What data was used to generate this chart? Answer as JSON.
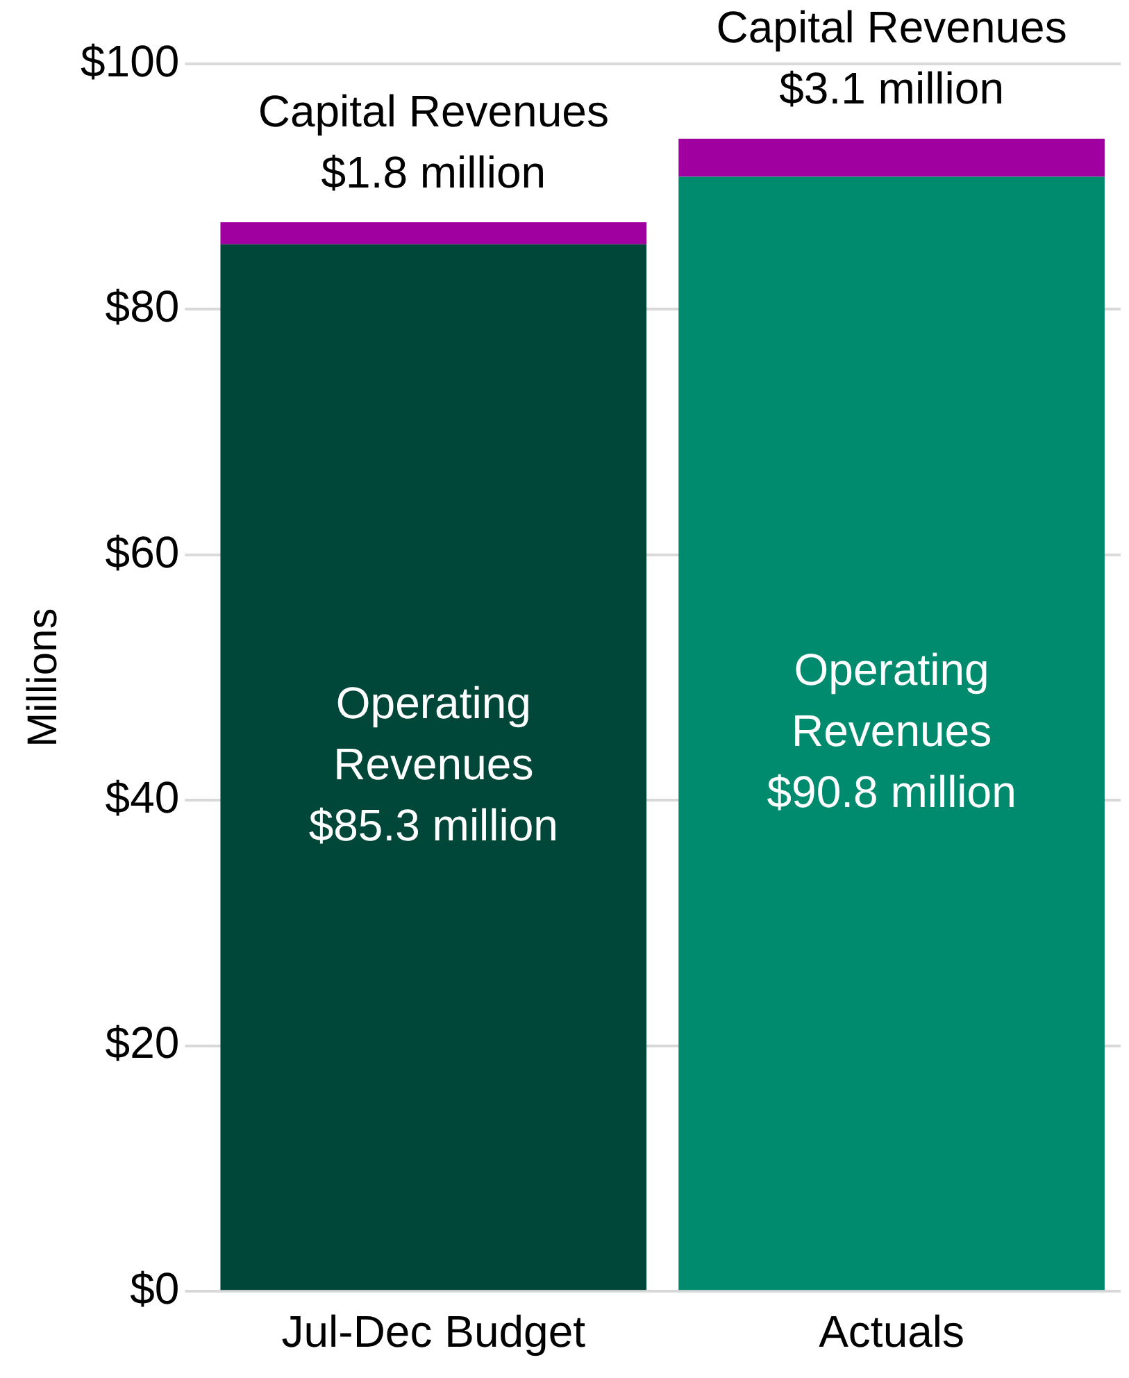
{
  "chart_data": {
    "type": "bar",
    "stacked": true,
    "ylabel": "Millions",
    "categories": [
      "Jul-Dec Budget",
      "Actuals"
    ],
    "series": [
      {
        "colors": [
          "#00473a",
          "#008a6e"
        ],
        "values": [
          85.3,
          90.8
        ],
        "value_labels": [
          "Operating\nRevenues\n$85.3 million",
          "Operating\nRevenues\n$90.8 million"
        ]
      },
      {
        "color": "#a000a0",
        "values": [
          1.8,
          3.1
        ],
        "value_labels": [
          "Capital Revenues\n$1.8 million",
          "Capital Revenues\n$3.1 million"
        ]
      }
    ],
    "ylim": [
      0,
      100
    ],
    "yticks": [
      {
        "value": 0,
        "label": "$0"
      },
      {
        "value": 20,
        "label": "$20"
      },
      {
        "value": 40,
        "label": "$40"
      },
      {
        "value": 60,
        "label": "$60"
      },
      {
        "value": 80,
        "label": "$80"
      },
      {
        "value": 100,
        "label": "$100"
      }
    ],
    "grid": "y",
    "legend": false
  }
}
